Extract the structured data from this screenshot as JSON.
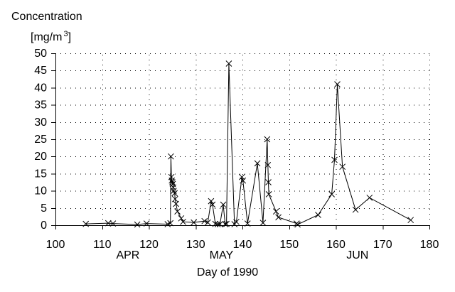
{
  "page": {
    "title": "Concentration",
    "unit_prefix": "[mg/m",
    "unit_sup": "3",
    "unit_suffix": "]",
    "xlabel": "Day of 1990"
  },
  "colors": {
    "foreground": "#000000",
    "background": "#ffffff",
    "grid_dots": "#000000"
  },
  "chart_data": {
    "type": "line",
    "marker": "x",
    "title": "Concentration [mg/m3]",
    "xlabel": "Day of 1990",
    "ylabel": "Concentration [mg/m3]",
    "xlim": [
      100,
      180
    ],
    "ylim": [
      0,
      50
    ],
    "x_ticks": [
      100,
      110,
      120,
      130,
      140,
      150,
      160,
      170,
      180
    ],
    "y_ticks": [
      0,
      5,
      10,
      15,
      20,
      25,
      30,
      35,
      40,
      45,
      50
    ],
    "grid": "dotted",
    "legend": "none",
    "months": [
      {
        "label": "APR",
        "day": 115.5
      },
      {
        "label": "MAY",
        "day": 135.5
      },
      {
        "label": "JUN",
        "day": 164.6
      }
    ],
    "points": [
      [
        106.5,
        0.4
      ],
      [
        111.3,
        0.6
      ],
      [
        112.3,
        0.5
      ],
      [
        117.5,
        0.2
      ],
      [
        119.5,
        0.5
      ],
      [
        124.0,
        0.3
      ],
      [
        124.6,
        0.6
      ],
      [
        124.7,
        20.0
      ],
      [
        124.8,
        14.0
      ],
      [
        124.9,
        13.0
      ],
      [
        125.0,
        12.5
      ],
      [
        125.1,
        12.0
      ],
      [
        125.2,
        11.0
      ],
      [
        125.3,
        10.0
      ],
      [
        125.5,
        9.3
      ],
      [
        125.6,
        7.6
      ],
      [
        125.8,
        6.2
      ],
      [
        126.1,
        4.0
      ],
      [
        126.9,
        2.0
      ],
      [
        127.3,
        1.0
      ],
      [
        129.6,
        0.8
      ],
      [
        131.9,
        1.2
      ],
      [
        132.6,
        0.8
      ],
      [
        133.3,
        7.0
      ],
      [
        133.6,
        6.0
      ],
      [
        134.2,
        0.4
      ],
      [
        134.7,
        0.3
      ],
      [
        135.2,
        0.3
      ],
      [
        135.9,
        6.0
      ],
      [
        136.3,
        0.3
      ],
      [
        136.6,
        0.4
      ],
      [
        137.1,
        47.0
      ],
      [
        138.3,
        0.3
      ],
      [
        138.7,
        1.0
      ],
      [
        139.9,
        14.0
      ],
      [
        140.1,
        13.0
      ],
      [
        141.1,
        0.5
      ],
      [
        143.2,
        18.0
      ],
      [
        144.4,
        0.7
      ],
      [
        145.3,
        25.0
      ],
      [
        145.45,
        17.5
      ],
      [
        145.55,
        12.5
      ],
      [
        145.65,
        9.0
      ],
      [
        147.2,
        4.0
      ],
      [
        147.7,
        2.3
      ],
      [
        151.6,
        0.5
      ],
      [
        151.8,
        0.2
      ],
      [
        156.2,
        3.0
      ],
      [
        159.1,
        9.0
      ],
      [
        159.7,
        19.0
      ],
      [
        160.3,
        41.0
      ],
      [
        161.4,
        17.0
      ],
      [
        164.2,
        4.5
      ],
      [
        167.2,
        8.0
      ],
      [
        176.0,
        1.5
      ]
    ]
  }
}
